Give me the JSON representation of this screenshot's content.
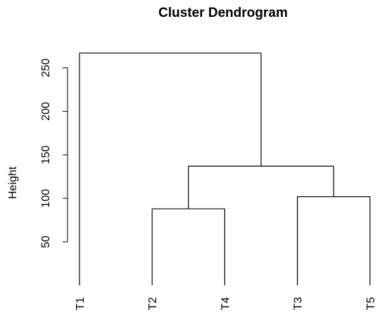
{
  "chart_data": {
    "type": "dendrogram",
    "title": "Cluster Dendrogram",
    "ylabel": "Height",
    "xlabel": "",
    "ylim": [
      0,
      270
    ],
    "yticks": [
      50,
      100,
      150,
      200,
      250
    ],
    "leaves": [
      "T1",
      "T2",
      "T4",
      "T3",
      "T5"
    ],
    "merges": [
      {
        "left": "T2",
        "right": "T4",
        "height": 88
      },
      {
        "left": "T3",
        "right": "T5",
        "height": 102
      },
      {
        "left": "T2+T4",
        "right": "T3+T5",
        "height": 137
      },
      {
        "left": "T1",
        "right": "T2+T4+T3+T5",
        "height": 267
      }
    ],
    "grid": false,
    "legend": "none"
  }
}
